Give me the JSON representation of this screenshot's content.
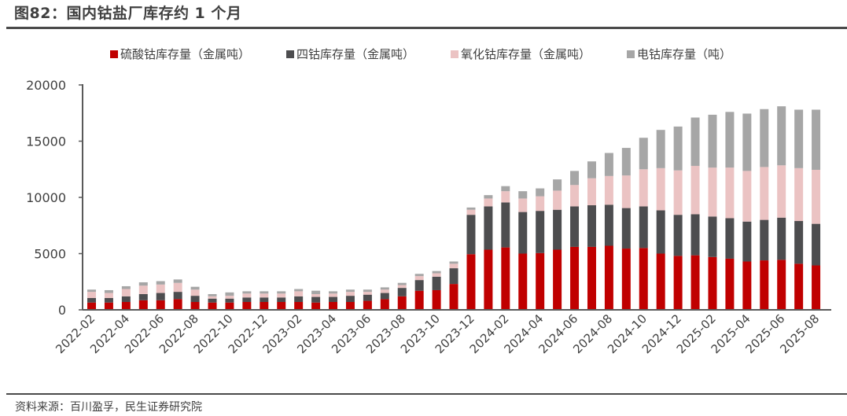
{
  "header": {
    "title": "图82：国内钴盐厂库存约 1 个月"
  },
  "footer": {
    "source": "资料来源：百川盈孚，民生证券研究院"
  },
  "chart_data": {
    "type": "bar",
    "stacked": true,
    "title": "图82：国内钴盐厂库存约 1 个月",
    "xlabel": "",
    "ylabel": "",
    "ylim": [
      0,
      20000
    ],
    "yticks": [
      "0",
      "5000",
      "10000",
      "15000",
      "20000"
    ],
    "grid": false,
    "legend_position": "top",
    "categories": [
      "2022-02",
      "2022-03",
      "2022-04",
      "2022-05",
      "2022-06",
      "2022-07",
      "2022-08",
      "2022-09",
      "2022-10",
      "2022-11",
      "2022-12",
      "2023-01",
      "2023-02",
      "2023-03",
      "2023-04",
      "2023-05",
      "2023-06",
      "2023-07",
      "2023-08",
      "2023-09",
      "2023-10",
      "2023-11",
      "2023-12",
      "2024-01",
      "2024-02",
      "2024-03",
      "2024-04",
      "2024-05",
      "2024-06",
      "2024-07",
      "2024-08",
      "2024-09",
      "2024-10",
      "2024-11",
      "2024-12",
      "2025-01",
      "2025-02",
      "2025-03",
      "2025-04",
      "2025-05",
      "2025-06",
      "2025-07",
      "2025-08"
    ],
    "xtick_labels": [
      "2022-02",
      "2022-04",
      "2022-06",
      "2022-08",
      "2022-10",
      "2022-12",
      "2023-02",
      "2023-04",
      "2023-06",
      "2023-08",
      "2023-10",
      "2023-12",
      "2024-02",
      "2024-04",
      "2024-06",
      "2024-08",
      "2024-10",
      "2024-12",
      "2025-02",
      "2025-04",
      "2025-06",
      "2025-08"
    ],
    "series": [
      {
        "name": "硫酸钴库存量（金属吨）",
        "color": "#c00000",
        "values": [
          650,
          650,
          700,
          850,
          850,
          950,
          700,
          650,
          650,
          700,
          700,
          700,
          700,
          650,
          700,
          700,
          800,
          950,
          1200,
          1700,
          1750,
          2300,
          4950,
          5350,
          5550,
          5000,
          5050,
          5350,
          5600,
          5600,
          5700,
          5450,
          5500,
          5000,
          4800,
          4850,
          4700,
          4550,
          4300,
          4400,
          4450,
          4100,
          3950
        ]
      },
      {
        "name": "四钴库存量（金属吨）",
        "color": "#4d4d4f",
        "values": [
          400,
          400,
          500,
          550,
          650,
          650,
          550,
          350,
          350,
          400,
          400,
          400,
          500,
          500,
          450,
          550,
          550,
          550,
          750,
          950,
          1200,
          1400,
          3500,
          3850,
          4000,
          3700,
          3750,
          3550,
          3600,
          3700,
          3650,
          3600,
          3700,
          3850,
          3650,
          3650,
          3600,
          3600,
          3550,
          3600,
          3750,
          3800,
          3700
        ]
      },
      {
        "name": "氧化钴库存量（金属吨）",
        "color": "#ebc3c3",
        "values": [
          550,
          450,
          650,
          750,
          750,
          800,
          550,
          200,
          250,
          350,
          350,
          350,
          450,
          250,
          300,
          350,
          250,
          300,
          250,
          350,
          300,
          400,
          450,
          700,
          1000,
          1200,
          1300,
          1700,
          1900,
          2400,
          2550,
          2900,
          3300,
          3750,
          3950,
          4300,
          4350,
          4500,
          4500,
          4700,
          4650,
          4700,
          4800
        ]
      },
      {
        "name": "电钴库存量（吨）",
        "color": "#a6a6a6",
        "values": [
          200,
          250,
          250,
          300,
          300,
          300,
          250,
          200,
          300,
          200,
          200,
          200,
          200,
          300,
          200,
          200,
          200,
          200,
          200,
          200,
          200,
          200,
          200,
          300,
          450,
          650,
          700,
          1000,
          1250,
          1500,
          2050,
          2450,
          2800,
          3400,
          3900,
          4300,
          4700,
          4950,
          5100,
          5150,
          5250,
          5200,
          5350
        ]
      }
    ]
  }
}
